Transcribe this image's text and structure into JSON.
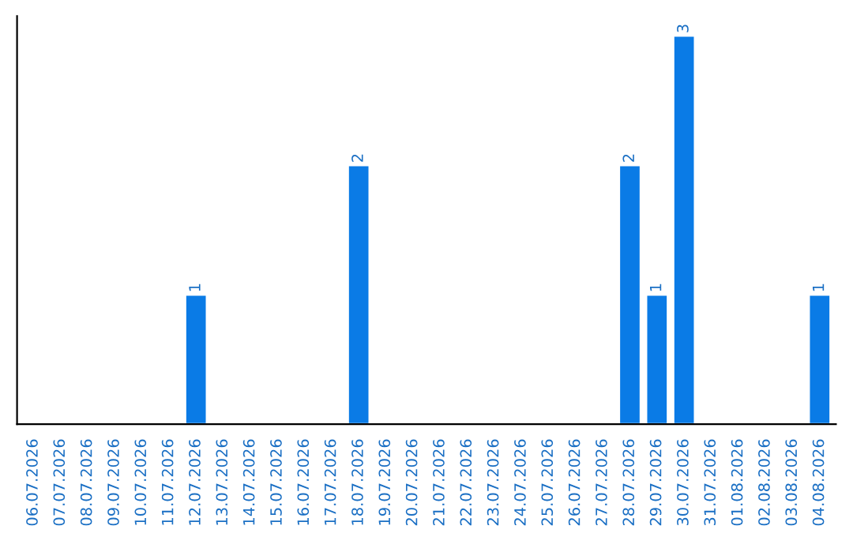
{
  "chart_data": {
    "type": "bar",
    "categories": [
      "06.07.2026",
      "07.07.2026",
      "08.07.2026",
      "09.07.2026",
      "10.07.2026",
      "11.07.2026",
      "12.07.2026",
      "13.07.2026",
      "14.07.2026",
      "15.07.2026",
      "16.07.2026",
      "17.07.2026",
      "18.07.2026",
      "19.07.2026",
      "20.07.2026",
      "21.07.2026",
      "22.07.2026",
      "23.07.2026",
      "24.07.2026",
      "25.07.2026",
      "26.07.2026",
      "27.07.2026",
      "28.07.2026",
      "29.07.2026",
      "30.07.2026",
      "31.07.2026",
      "01.08.2026",
      "02.08.2026",
      "03.08.2026",
      "04.08.2026"
    ],
    "values": [
      null,
      null,
      null,
      null,
      null,
      null,
      1,
      null,
      null,
      null,
      null,
      null,
      2,
      null,
      null,
      null,
      null,
      null,
      null,
      null,
      null,
      null,
      2,
      1,
      3,
      null,
      null,
      null,
      null,
      1
    ],
    "value_labels": [
      null,
      null,
      null,
      null,
      null,
      null,
      "1",
      null,
      null,
      null,
      null,
      null,
      "2",
      null,
      null,
      null,
      null,
      null,
      null,
      null,
      null,
      null,
      "2",
      "1",
      "3",
      null,
      null,
      null,
      null,
      "1"
    ],
    "color": "#0a7be6",
    "tick_labels": "x",
    "grid": false,
    "legend": false
  }
}
